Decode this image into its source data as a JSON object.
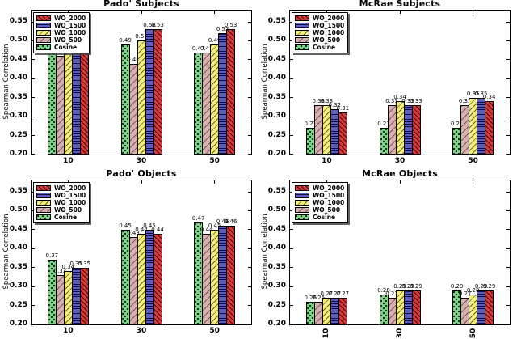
{
  "figure": {
    "background": "#ffffff",
    "axis_color": "#000000"
  },
  "series_styles": [
    {
      "label": "WO_2000",
      "color": "#dc3a3a",
      "hatch": "forward-diagonal"
    },
    {
      "label": "WO_1500",
      "color": "#5c5cc2",
      "hatch": "horizontal-lines"
    },
    {
      "label": "WO_1000",
      "color": "#f4ef7d",
      "hatch": "back-diagonal"
    },
    {
      "label": "WO_500",
      "color": "#d7b1b1",
      "hatch": "back-diagonal-sparse"
    },
    {
      "label": "Cosine",
      "color": "#7bd385",
      "hatch": "dots"
    }
  ],
  "chart_data": [
    {
      "type": "bar",
      "title": "Pado' Subjects",
      "ylabel": "Spearman Correlation",
      "categories": [
        "10",
        "30",
        "50"
      ],
      "ylim": [
        0.2,
        0.58
      ],
      "yticks": [
        0.2,
        0.25,
        0.3,
        0.35,
        0.4,
        0.45,
        0.5,
        0.55
      ],
      "xtick_rotation": 0,
      "grid": false,
      "legend_position": "upper left",
      "legend_order": [
        "WO_2000",
        "WO_1500",
        "WO_1000",
        "WO_500",
        "Cosine"
      ],
      "bar_draw_order": [
        "Cosine",
        "WO_500",
        "WO_1000",
        "WO_1500",
        "WO_2000"
      ],
      "bar_value_labels": true,
      "series": [
        {
          "name": "WO_2000",
          "values": [
            0.53,
            0.53,
            0.53
          ]
        },
        {
          "name": "WO_1500",
          "values": [
            0.53,
            0.53,
            0.52
          ]
        },
        {
          "name": "WO_1000",
          "values": [
            0.51,
            0.5,
            0.49
          ]
        },
        {
          "name": "WO_500",
          "values": [
            0.46,
            0.44,
            0.47
          ]
        },
        {
          "name": "Cosine",
          "values": [
            0.47,
            0.49,
            0.47
          ]
        }
      ]
    },
    {
      "type": "bar",
      "title": "McRae Subjects",
      "ylabel": "Spearman Correlation",
      "categories": [
        "10",
        "30",
        "50"
      ],
      "ylim": [
        0.2,
        0.58
      ],
      "yticks": [
        0.2,
        0.25,
        0.3,
        0.35,
        0.4,
        0.45,
        0.5,
        0.55
      ],
      "xtick_rotation": 0,
      "grid": false,
      "legend_position": "upper left",
      "legend_order": [
        "WO_2000",
        "WO_1500",
        "WO_1000",
        "WO_500",
        "Cosine"
      ],
      "bar_draw_order": [
        "Cosine",
        "WO_500",
        "WO_1000",
        "WO_1500",
        "WO_2000"
      ],
      "bar_value_labels": true,
      "series": [
        {
          "name": "WO_2000",
          "values": [
            0.31,
            0.33,
            0.34
          ]
        },
        {
          "name": "WO_1500",
          "values": [
            0.32,
            0.33,
            0.35
          ]
        },
        {
          "name": "WO_1000",
          "values": [
            0.33,
            0.34,
            0.35
          ]
        },
        {
          "name": "WO_500",
          "values": [
            0.33,
            0.33,
            0.33
          ]
        },
        {
          "name": "Cosine",
          "values": [
            0.27,
            0.27,
            0.27
          ]
        }
      ]
    },
    {
      "type": "bar",
      "title": "Pado' Objects",
      "ylabel": "Spearman Correlation",
      "categories": [
        "10",
        "30",
        "50"
      ],
      "ylim": [
        0.2,
        0.58
      ],
      "yticks": [
        0.2,
        0.25,
        0.3,
        0.35,
        0.4,
        0.45,
        0.5,
        0.55
      ],
      "xtick_rotation": 0,
      "grid": false,
      "legend_position": "upper left",
      "legend_order": [
        "WO_2000",
        "WO_1500",
        "WO_1000",
        "WO_500",
        "Cosine"
      ],
      "bar_draw_order": [
        "Cosine",
        "WO_500",
        "WO_1000",
        "WO_1500",
        "WO_2000"
      ],
      "bar_value_labels": true,
      "series": [
        {
          "name": "WO_2000",
          "values": [
            0.35,
            0.44,
            0.46
          ]
        },
        {
          "name": "WO_1500",
          "values": [
            0.35,
            0.45,
            0.46
          ]
        },
        {
          "name": "WO_1000",
          "values": [
            0.34,
            0.44,
            0.45
          ]
        },
        {
          "name": "WO_500",
          "values": [
            0.33,
            0.43,
            0.44
          ]
        },
        {
          "name": "Cosine",
          "values": [
            0.37,
            0.45,
            0.47
          ]
        }
      ]
    },
    {
      "type": "bar",
      "title": "McRae Objects",
      "ylabel": "Spearman Correlation",
      "categories": [
        "10",
        "30",
        "50"
      ],
      "ylim": [
        0.2,
        0.58
      ],
      "yticks": [
        0.2,
        0.25,
        0.3,
        0.35,
        0.4,
        0.45,
        0.5,
        0.55
      ],
      "xtick_rotation": 90,
      "grid": false,
      "legend_position": "upper left",
      "legend_order": [
        "WO_2000",
        "WO_1500",
        "WO_1000",
        "WO_500",
        "Cosine"
      ],
      "bar_draw_order": [
        "Cosine",
        "WO_500",
        "WO_1000",
        "WO_1500",
        "WO_2000"
      ],
      "bar_value_labels": true,
      "series": [
        {
          "name": "WO_2000",
          "values": [
            0.27,
            0.29,
            0.29
          ]
        },
        {
          "name": "WO_1500",
          "values": [
            0.27,
            0.29,
            0.29
          ]
        },
        {
          "name": "WO_1000",
          "values": [
            0.27,
            0.29,
            0.28
          ]
        },
        {
          "name": "WO_500",
          "values": [
            0.26,
            0.27,
            0.27
          ]
        },
        {
          "name": "Cosine",
          "values": [
            0.26,
            0.28,
            0.29
          ]
        }
      ]
    }
  ]
}
